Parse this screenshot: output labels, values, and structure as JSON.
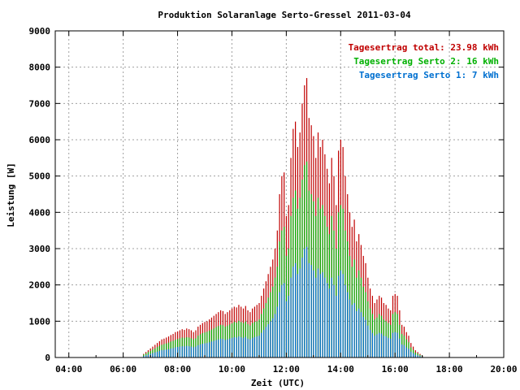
{
  "chart_data": {
    "type": "bar",
    "title": "Produktion Solaranlage Serto-Gressel 2011-03-04",
    "xlabel": "Zeit (UTC)",
    "ylabel": "Leistung [W]",
    "xlim": [
      3.5,
      20.0
    ],
    "ylim": [
      0,
      9000
    ],
    "grid": true,
    "legend_position": "top-right",
    "x_tick_labels": [
      "04:00",
      "06:00",
      "08:00",
      "10:00",
      "12:00",
      "14:00",
      "16:00",
      "18:00",
      "20:00"
    ],
    "x_tick_values": [
      4,
      6,
      8,
      10,
      12,
      14,
      16,
      18,
      20
    ],
    "y_tick_labels": [
      "0",
      "1000",
      "2000",
      "3000",
      "4000",
      "5000",
      "6000",
      "7000",
      "8000",
      "9000"
    ],
    "y_tick_values": [
      0,
      1000,
      2000,
      3000,
      4000,
      5000,
      6000,
      7000,
      8000,
      9000
    ],
    "legend": [
      {
        "label": "Tagesertrag total: 23.98 kWh",
        "color": "#c00000"
      },
      {
        "label": "Tagesertrag Serto 2: 16 kWh",
        "color": "#00b000"
      },
      {
        "label": "Tagesertrag Serto 1: 7 kWh",
        "color": "#0070d0"
      }
    ],
    "series": [
      {
        "name": "Tagesertrag total: 23.98 kWh",
        "color": "#c00000",
        "x": [
          6.75,
          6.833,
          6.917,
          7.0,
          7.083,
          7.167,
          7.25,
          7.333,
          7.417,
          7.5,
          7.583,
          7.667,
          7.75,
          7.833,
          7.917,
          8.0,
          8.083,
          8.167,
          8.25,
          8.333,
          8.417,
          8.5,
          8.583,
          8.667,
          8.75,
          8.833,
          8.917,
          9.0,
          9.083,
          9.167,
          9.25,
          9.333,
          9.417,
          9.5,
          9.583,
          9.667,
          9.75,
          9.833,
          9.917,
          10.0,
          10.083,
          10.167,
          10.25,
          10.333,
          10.417,
          10.5,
          10.583,
          10.667,
          10.75,
          10.833,
          10.917,
          11.0,
          11.083,
          11.167,
          11.25,
          11.333,
          11.417,
          11.5,
          11.583,
          11.667,
          11.75,
          11.833,
          11.917,
          12.0,
          12.083,
          12.167,
          12.25,
          12.333,
          12.417,
          12.5,
          12.583,
          12.667,
          12.75,
          12.833,
          12.917,
          13.0,
          13.083,
          13.167,
          13.25,
          13.333,
          13.417,
          13.5,
          13.583,
          13.667,
          13.75,
          13.833,
          13.917,
          14.0,
          14.083,
          14.167,
          14.25,
          14.333,
          14.417,
          14.5,
          14.583,
          14.667,
          14.75,
          14.833,
          14.917,
          15.0,
          15.083,
          15.167,
          15.25,
          15.333,
          15.417,
          15.5,
          15.583,
          15.667,
          15.75,
          15.833,
          15.917,
          16.0,
          16.083,
          16.167,
          16.25,
          16.333,
          16.417,
          16.5,
          16.583,
          16.667,
          16.75,
          16.833,
          16.917,
          17.0
        ],
        "values": [
          100,
          150,
          200,
          250,
          300,
          350,
          400,
          450,
          500,
          520,
          550,
          580,
          620,
          650,
          700,
          720,
          750,
          780,
          760,
          800,
          780,
          750,
          700,
          750,
          850,
          900,
          950,
          980,
          1000,
          1050,
          1100,
          1150,
          1200,
          1250,
          1300,
          1280,
          1200,
          1250,
          1300,
          1350,
          1400,
          1380,
          1450,
          1400,
          1350,
          1420,
          1300,
          1250,
          1350,
          1400,
          1450,
          1500,
          1700,
          1900,
          2100,
          2300,
          2500,
          2700,
          3000,
          3500,
          4500,
          5000,
          5100,
          3900,
          4200,
          5500,
          6300,
          6500,
          5800,
          6200,
          7000,
          7500,
          7700,
          6600,
          6400,
          6100,
          5500,
          6200,
          5800,
          6000,
          5600,
          5200,
          4800,
          5500,
          5000,
          4200,
          5700,
          6000,
          5800,
          5000,
          4500,
          4000,
          3600,
          3800,
          3200,
          3400,
          3100,
          2800,
          2600,
          2200,
          1900,
          1700,
          1500,
          1600,
          1700,
          1650,
          1500,
          1450,
          1350,
          1300,
          1700,
          1750,
          1700,
          1300,
          900,
          850,
          700,
          600,
          400,
          300,
          200,
          150,
          100,
          50
        ]
      },
      {
        "name": "Tagesertrag Serto 2: 16 kWh",
        "color": "#00b000",
        "x": [
          6.75,
          6.833,
          6.917,
          7.0,
          7.083,
          7.167,
          7.25,
          7.333,
          7.417,
          7.5,
          7.583,
          7.667,
          7.75,
          7.833,
          7.917,
          8.0,
          8.083,
          8.167,
          8.25,
          8.333,
          8.417,
          8.5,
          8.583,
          8.667,
          8.75,
          8.833,
          8.917,
          9.0,
          9.083,
          9.167,
          9.25,
          9.333,
          9.417,
          9.5,
          9.583,
          9.667,
          9.75,
          9.833,
          9.917,
          10.0,
          10.083,
          10.167,
          10.25,
          10.333,
          10.417,
          10.5,
          10.583,
          10.667,
          10.75,
          10.833,
          10.917,
          11.0,
          11.083,
          11.167,
          11.25,
          11.333,
          11.417,
          11.5,
          11.583,
          11.667,
          11.75,
          11.833,
          11.917,
          12.0,
          12.083,
          12.167,
          12.25,
          12.333,
          12.417,
          12.5,
          12.583,
          12.667,
          12.75,
          12.833,
          12.917,
          13.0,
          13.083,
          13.167,
          13.25,
          13.333,
          13.417,
          13.5,
          13.583,
          13.667,
          13.75,
          13.833,
          13.917,
          14.0,
          14.083,
          14.167,
          14.25,
          14.333,
          14.417,
          14.5,
          14.583,
          14.667,
          14.75,
          14.833,
          14.917,
          15.0,
          15.083,
          15.167,
          15.25,
          15.333,
          15.417,
          15.5,
          15.583,
          15.667,
          15.75,
          15.833,
          15.917,
          16.0,
          16.083,
          16.167,
          16.25,
          16.333,
          16.417,
          16.5,
          16.583,
          16.667,
          16.75,
          16.833,
          16.917,
          17.0
        ],
        "values": [
          80,
          110,
          150,
          180,
          220,
          250,
          290,
          320,
          350,
          370,
          390,
          410,
          440,
          460,
          490,
          510,
          530,
          550,
          540,
          560,
          550,
          530,
          500,
          530,
          600,
          640,
          670,
          690,
          710,
          740,
          770,
          800,
          840,
          870,
          900,
          890,
          850,
          880,
          910,
          940,
          980,
          960,
          1010,
          980,
          950,
          990,
          920,
          880,
          950,
          980,
          1000,
          1050,
          1200,
          1350,
          1500,
          1650,
          1800,
          1950,
          2200,
          2500,
          3200,
          3500,
          3600,
          2800,
          3000,
          3900,
          4400,
          4600,
          4100,
          4400,
          4900,
          5300,
          5400,
          4600,
          4500,
          4300,
          3900,
          4400,
          4100,
          4200,
          3900,
          3600,
          3400,
          3900,
          3500,
          3000,
          4000,
          4200,
          4100,
          3500,
          3200,
          2800,
          2500,
          2700,
          2200,
          2400,
          2200,
          1950,
          1800,
          1550,
          1350,
          1200,
          1050,
          1100,
          1200,
          1150,
          1050,
          1000,
          950,
          900,
          1200,
          1250,
          1200,
          900,
          650,
          600,
          500,
          420,
          280,
          210,
          140,
          110,
          70,
          35
        ]
      },
      {
        "name": "Tagesertrag Serto 1: 7 kWh",
        "color": "#0070d0",
        "x": [
          6.75,
          6.833,
          6.917,
          7.0,
          7.083,
          7.167,
          7.25,
          7.333,
          7.417,
          7.5,
          7.583,
          7.667,
          7.75,
          7.833,
          7.917,
          8.0,
          8.083,
          8.167,
          8.25,
          8.333,
          8.417,
          8.5,
          8.583,
          8.667,
          8.75,
          8.833,
          8.917,
          9.0,
          9.083,
          9.167,
          9.25,
          9.333,
          9.417,
          9.5,
          9.583,
          9.667,
          9.75,
          9.833,
          9.917,
          10.0,
          10.083,
          10.167,
          10.25,
          10.333,
          10.417,
          10.5,
          10.583,
          10.667,
          10.75,
          10.833,
          10.917,
          11.0,
          11.083,
          11.167,
          11.25,
          11.333,
          11.417,
          11.5,
          11.583,
          11.667,
          11.75,
          11.833,
          11.917,
          12.0,
          12.083,
          12.167,
          12.25,
          12.333,
          12.417,
          12.5,
          12.583,
          12.667,
          12.75,
          12.833,
          12.917,
          13.0,
          13.083,
          13.167,
          13.25,
          13.333,
          13.417,
          13.5,
          13.583,
          13.667,
          13.75,
          13.833,
          13.917,
          14.0,
          14.083,
          14.167,
          14.25,
          14.333,
          14.417,
          14.5,
          14.583,
          14.667,
          14.75,
          14.833,
          14.917,
          15.0,
          15.083,
          15.167,
          15.25,
          15.333,
          15.417,
          15.5,
          15.583,
          15.667,
          15.75,
          15.833,
          15.917,
          16.0,
          16.083,
          16.167,
          16.25,
          16.333,
          16.417,
          16.5,
          16.583,
          16.667,
          16.75,
          16.833,
          16.917,
          17.0
        ],
        "values": [
          40,
          60,
          80,
          100,
          120,
          140,
          160,
          180,
          200,
          210,
          220,
          230,
          250,
          260,
          280,
          290,
          300,
          310,
          305,
          320,
          310,
          300,
          280,
          300,
          340,
          360,
          380,
          390,
          400,
          420,
          440,
          460,
          480,
          500,
          520,
          510,
          480,
          500,
          520,
          540,
          560,
          550,
          580,
          560,
          540,
          570,
          520,
          500,
          540,
          560,
          580,
          600,
          680,
          760,
          840,
          920,
          1000,
          1080,
          1200,
          1400,
          1800,
          2000,
          2050,
          1550,
          1700,
          2200,
          2500,
          2600,
          2300,
          2450,
          2750,
          3000,
          3050,
          2600,
          2550,
          2400,
          2200,
          2450,
          2300,
          2350,
          2200,
          2050,
          1900,
          2200,
          2000,
          1700,
          2250,
          2400,
          2300,
          2000,
          1800,
          1600,
          1450,
          1500,
          1280,
          1350,
          1250,
          1120,
          1040,
          880,
          760,
          680,
          600,
          640,
          680,
          660,
          600,
          580,
          540,
          520,
          680,
          700,
          680,
          520,
          360,
          340,
          280,
          240,
          160,
          120,
          80,
          60,
          40,
          20
        ]
      }
    ]
  }
}
